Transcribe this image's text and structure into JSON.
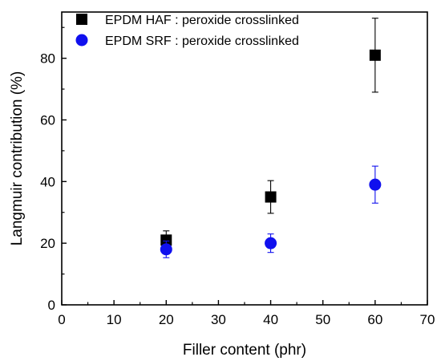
{
  "chart_data": {
    "type": "scatter",
    "xlabel": "Filler content (phr)",
    "ylabel": "Langmuir contribution (%)",
    "xlim": [
      0,
      70
    ],
    "ylim": [
      0,
      95
    ],
    "xticks": [
      0,
      10,
      20,
      30,
      40,
      50,
      60,
      70
    ],
    "yticks": [
      0,
      20,
      40,
      60,
      80
    ],
    "grid": false,
    "legend_position": "top-right",
    "series": [
      {
        "name": "EPDM HAF : peroxide crosslinked",
        "marker": "square",
        "color": "#000000",
        "points": [
          {
            "x": 20,
            "y": 21,
            "err": 3
          },
          {
            "x": 40,
            "y": 35,
            "err": 5.3
          },
          {
            "x": 60,
            "y": 81,
            "err": 12
          }
        ]
      },
      {
        "name": "EPDM SRF : peroxide crosslinked",
        "marker": "circle",
        "color": "#1010ee",
        "points": [
          {
            "x": 20,
            "y": 18,
            "err": 2.7
          },
          {
            "x": 40,
            "y": 20,
            "err": 3
          },
          {
            "x": 60,
            "y": 39,
            "err": 6
          }
        ]
      }
    ]
  }
}
